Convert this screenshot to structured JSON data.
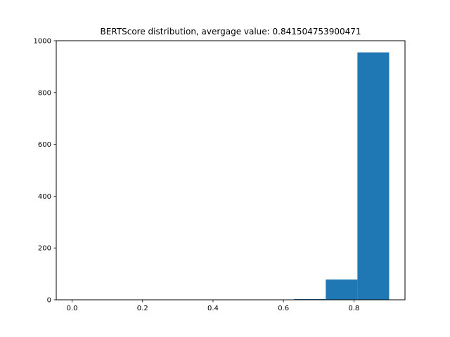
{
  "chart_data": {
    "type": "bar",
    "title": "BERTScore distribution, avergage value: 0.841504753900471",
    "xlabel": "",
    "ylabel": "",
    "bins": [
      {
        "x0": 0.0,
        "x1": 0.09,
        "value": 0
      },
      {
        "x0": 0.09,
        "x1": 0.18,
        "value": 0
      },
      {
        "x0": 0.18,
        "x1": 0.27,
        "value": 0
      },
      {
        "x0": 0.27,
        "x1": 0.36,
        "value": 0
      },
      {
        "x0": 0.36,
        "x1": 0.45,
        "value": 0
      },
      {
        "x0": 0.45,
        "x1": 0.54,
        "value": 0
      },
      {
        "x0": 0.54,
        "x1": 0.63,
        "value": 0
      },
      {
        "x0": 0.63,
        "x1": 0.72,
        "value": 3
      },
      {
        "x0": 0.72,
        "x1": 0.81,
        "value": 78
      },
      {
        "x0": 0.81,
        "x1": 0.9,
        "value": 955
      }
    ],
    "xlim": [
      -0.045,
      0.945
    ],
    "ylim": [
      0,
      1000
    ],
    "xticks": [
      0.0,
      0.2,
      0.4,
      0.6,
      0.8
    ],
    "xtick_labels": [
      "0.0",
      "0.2",
      "0.4",
      "0.6",
      "0.8"
    ],
    "yticks": [
      0,
      200,
      400,
      600,
      800,
      1000
    ],
    "ytick_labels": [
      "0",
      "200",
      "400",
      "600",
      "800",
      "1000"
    ],
    "grid": false,
    "bar_color": "#1f77b4"
  }
}
